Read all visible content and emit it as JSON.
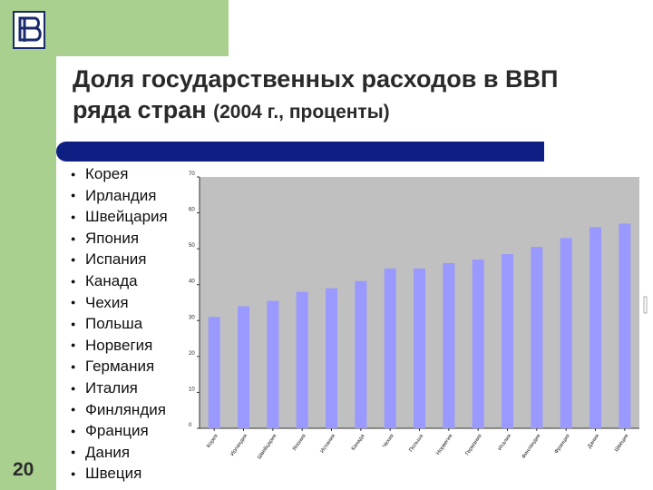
{
  "slide": {
    "title_main": "Доля государственных расходов в ВВП ряда стран",
    "title_paren": "(2004 г., проценты)",
    "page_number": "20",
    "logo_icon": "university-logo-icon"
  },
  "colors": {
    "green": "#a9d08e",
    "rule": "#0d1f82",
    "bar": "#9999ff",
    "plot_bg": "#c0c0c0"
  },
  "countries": [
    "Корея",
    "Ирландия",
    "Швейцария",
    "Япония",
    "Испания",
    "Канада",
    "Чехия",
    "Польша",
    "Норвегия",
    "Германия",
    "Италия",
    "Финляндия",
    "Франция",
    "Дания",
    "Швеция"
  ],
  "chart_data": {
    "type": "bar",
    "categories": [
      "Корея",
      "Ирландия",
      "Швейцария",
      "Япония",
      "Испания",
      "Канада",
      "Чехия",
      "Польша",
      "Норвегия",
      "Германия",
      "Италия",
      "Финляндия",
      "Франция",
      "Дания",
      "Швеция"
    ],
    "values": [
      31,
      34,
      35.5,
      38,
      39,
      41,
      44.5,
      44.5,
      46,
      47,
      48.5,
      50.5,
      53,
      56,
      57
    ],
    "ylim": [
      0,
      70
    ],
    "yticks": [
      0,
      10,
      20,
      30,
      40,
      50,
      60,
      70
    ],
    "grid": false,
    "legend": "none"
  }
}
